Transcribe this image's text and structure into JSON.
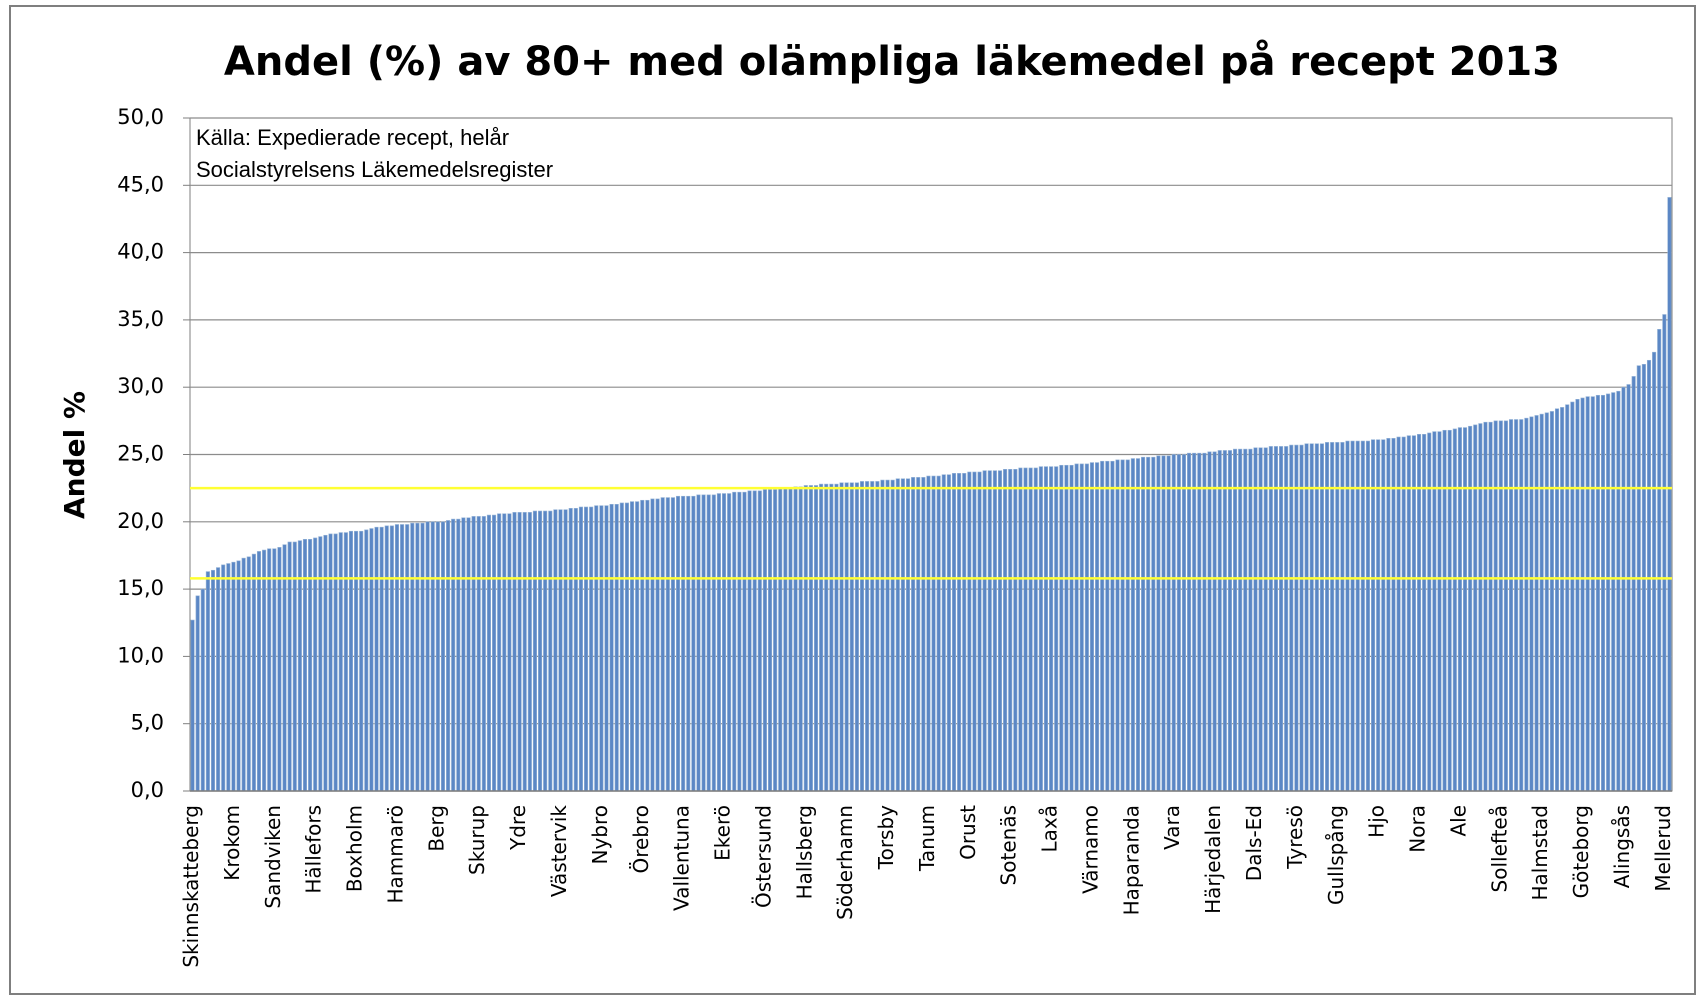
{
  "chart_data": {
    "type": "bar",
    "title": "Andel (%) av 80+ med olämpliga läkemedel på recept 2013",
    "y_label": "Andel %",
    "annotation": [
      "Källa: Expedierade recept, helår",
      "Socialstyrelsens Läkemedelsregister"
    ],
    "color": "#5b87c5",
    "grid": true,
    "reference_lines": [
      22.5,
      15.8
    ],
    "reference_color": "#ffff33",
    "ylim": [
      0,
      50
    ],
    "yticks": [
      {
        "value": 0,
        "label": "0,0"
      },
      {
        "value": 5,
        "label": "5,0"
      },
      {
        "value": 10,
        "label": "10,0"
      },
      {
        "value": 15,
        "label": "15,0"
      },
      {
        "value": 20,
        "label": "20,0"
      },
      {
        "value": 25,
        "label": "25,0"
      },
      {
        "value": 30,
        "label": "30,0"
      },
      {
        "value": 35,
        "label": "35,0"
      },
      {
        "value": 40,
        "label": "40,0"
      },
      {
        "value": 45,
        "label": "45,0"
      },
      {
        "value": 50,
        "label": "50,0"
      }
    ],
    "categories": [
      "Skinnskatteberg",
      null,
      null,
      null,
      null,
      null,
      null,
      null,
      "Krokom",
      null,
      null,
      null,
      null,
      null,
      null,
      null,
      "Sandviken",
      null,
      null,
      null,
      null,
      null,
      null,
      null,
      "Hällefors",
      null,
      null,
      null,
      null,
      null,
      null,
      null,
      "Boxholm",
      null,
      null,
      null,
      null,
      null,
      null,
      null,
      "Hammarö",
      null,
      null,
      null,
      null,
      null,
      null,
      null,
      "Berg",
      null,
      null,
      null,
      null,
      null,
      null,
      null,
      "Skurup",
      null,
      null,
      null,
      null,
      null,
      null,
      null,
      "Ydre",
      null,
      null,
      null,
      null,
      null,
      null,
      null,
      "Västervik",
      null,
      null,
      null,
      null,
      null,
      null,
      null,
      "Nybro",
      null,
      null,
      null,
      null,
      null,
      null,
      null,
      "Örebro",
      null,
      null,
      null,
      null,
      null,
      null,
      null,
      "Vallentuna",
      null,
      null,
      null,
      null,
      null,
      null,
      null,
      "Ekerö",
      null,
      null,
      null,
      null,
      null,
      null,
      null,
      "Östersund",
      null,
      null,
      null,
      null,
      null,
      null,
      null,
      "Hallsberg",
      null,
      null,
      null,
      null,
      null,
      null,
      null,
      "Söderhamn",
      null,
      null,
      null,
      null,
      null,
      null,
      null,
      "Torsby",
      null,
      null,
      null,
      null,
      null,
      null,
      null,
      "Tanum",
      null,
      null,
      null,
      null,
      null,
      null,
      null,
      "Orust",
      null,
      null,
      null,
      null,
      null,
      null,
      null,
      "Sotenäs",
      null,
      null,
      null,
      null,
      null,
      null,
      null,
      "Laxå",
      null,
      null,
      null,
      null,
      null,
      null,
      null,
      "Värnamo",
      null,
      null,
      null,
      null,
      null,
      null,
      null,
      "Haparanda",
      null,
      null,
      null,
      null,
      null,
      null,
      null,
      "Vara",
      null,
      null,
      null,
      null,
      null,
      null,
      null,
      "Härjedalen",
      null,
      null,
      null,
      null,
      null,
      null,
      null,
      "Dals-Ed",
      null,
      null,
      null,
      null,
      null,
      null,
      null,
      "Tyresö",
      null,
      null,
      null,
      null,
      null,
      null,
      null,
      "Gullspång",
      null,
      null,
      null,
      null,
      null,
      null,
      null,
      "Hjo",
      null,
      null,
      null,
      null,
      null,
      null,
      null,
      "Nora",
      null,
      null,
      null,
      null,
      null,
      null,
      null,
      "Ale",
      null,
      null,
      null,
      null,
      null,
      null,
      null,
      "Sollefteå",
      null,
      null,
      null,
      null,
      null,
      null,
      null,
      "Halmstad",
      null,
      null,
      null,
      null,
      null,
      null,
      null,
      "Göteborg",
      null,
      null,
      null,
      null,
      null,
      null,
      null,
      "Alingsås",
      null,
      null,
      null,
      null,
      null,
      null,
      null,
      "Mellerud",
      null
    ],
    "values": [
      12.7,
      14.5,
      15.0,
      16.3,
      16.4,
      16.6,
      16.8,
      16.9,
      17.0,
      17.1,
      17.3,
      17.4,
      17.6,
      17.8,
      17.9,
      18.0,
      18.0,
      18.1,
      18.3,
      18.5,
      18.5,
      18.6,
      18.7,
      18.7,
      18.8,
      18.9,
      19.0,
      19.1,
      19.1,
      19.2,
      19.2,
      19.3,
      19.3,
      19.3,
      19.4,
      19.5,
      19.6,
      19.6,
      19.7,
      19.7,
      19.8,
      19.8,
      19.8,
      19.9,
      19.9,
      19.9,
      20.0,
      20.0,
      20.0,
      20.0,
      20.1,
      20.2,
      20.2,
      20.3,
      20.3,
      20.4,
      20.4,
      20.4,
      20.5,
      20.5,
      20.6,
      20.6,
      20.6,
      20.7,
      20.7,
      20.7,
      20.7,
      20.8,
      20.8,
      20.8,
      20.8,
      20.9,
      20.9,
      20.9,
      21.0,
      21.0,
      21.1,
      21.1,
      21.1,
      21.2,
      21.2,
      21.2,
      21.3,
      21.3,
      21.4,
      21.4,
      21.5,
      21.5,
      21.6,
      21.6,
      21.7,
      21.7,
      21.8,
      21.8,
      21.8,
      21.9,
      21.9,
      21.9,
      21.9,
      22.0,
      22.0,
      22.0,
      22.0,
      22.1,
      22.1,
      22.1,
      22.2,
      22.2,
      22.2,
      22.3,
      22.3,
      22.3,
      22.4,
      22.4,
      22.4,
      22.5,
      22.5,
      22.5,
      22.6,
      22.6,
      22.7,
      22.7,
      22.7,
      22.8,
      22.8,
      22.8,
      22.8,
      22.9,
      22.9,
      22.9,
      22.9,
      23.0,
      23.0,
      23.0,
      23.0,
      23.1,
      23.1,
      23.1,
      23.2,
      23.2,
      23.2,
      23.3,
      23.3,
      23.3,
      23.4,
      23.4,
      23.4,
      23.5,
      23.5,
      23.6,
      23.6,
      23.6,
      23.7,
      23.7,
      23.7,
      23.8,
      23.8,
      23.8,
      23.8,
      23.9,
      23.9,
      23.9,
      24.0,
      24.0,
      24.0,
      24.0,
      24.1,
      24.1,
      24.1,
      24.1,
      24.2,
      24.2,
      24.2,
      24.3,
      24.3,
      24.3,
      24.4,
      24.4,
      24.5,
      24.5,
      24.5,
      24.6,
      24.6,
      24.6,
      24.7,
      24.7,
      24.8,
      24.8,
      24.8,
      24.9,
      24.9,
      24.9,
      25.0,
      25.0,
      25.0,
      25.1,
      25.1,
      25.1,
      25.1,
      25.2,
      25.2,
      25.3,
      25.3,
      25.3,
      25.4,
      25.4,
      25.4,
      25.4,
      25.5,
      25.5,
      25.5,
      25.6,
      25.6,
      25.6,
      25.6,
      25.7,
      25.7,
      25.7,
      25.8,
      25.8,
      25.8,
      25.8,
      25.9,
      25.9,
      25.9,
      25.9,
      26.0,
      26.0,
      26.0,
      26.0,
      26.0,
      26.1,
      26.1,
      26.1,
      26.2,
      26.2,
      26.3,
      26.3,
      26.4,
      26.4,
      26.5,
      26.5,
      26.6,
      26.7,
      26.7,
      26.8,
      26.8,
      26.9,
      27.0,
      27.0,
      27.1,
      27.2,
      27.3,
      27.4,
      27.4,
      27.5,
      27.5,
      27.5,
      27.6,
      27.6,
      27.6,
      27.7,
      27.8,
      27.9,
      28.0,
      28.1,
      28.2,
      28.4,
      28.5,
      28.7,
      28.9,
      29.1,
      29.2,
      29.3,
      29.3,
      29.4,
      29.4,
      29.5,
      29.6,
      29.7,
      30.0,
      30.2,
      30.8,
      31.6,
      31.7,
      32.0,
      32.6,
      34.3,
      35.4,
      44.1
    ]
  }
}
